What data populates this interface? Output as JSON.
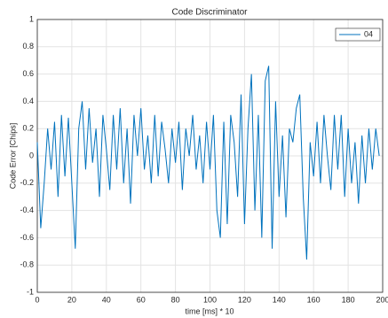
{
  "chart_data": {
    "type": "line",
    "title": "Code Discriminator",
    "x_label": "time [ms] * 10",
    "y_label": "Code Error [Chips]",
    "x": [
      0,
      2,
      4,
      6,
      8,
      10,
      12,
      14,
      16,
      18,
      20,
      22,
      24,
      26,
      28,
      30,
      32,
      34,
      36,
      38,
      40,
      42,
      44,
      46,
      48,
      50,
      52,
      54,
      56,
      58,
      60,
      62,
      64,
      66,
      68,
      70,
      72,
      74,
      76,
      78,
      80,
      82,
      84,
      86,
      88,
      90,
      92,
      94,
      96,
      98,
      100,
      102,
      104,
      106,
      108,
      110,
      112,
      114,
      116,
      118,
      120,
      122,
      124,
      126,
      128,
      130,
      132,
      134,
      136,
      138,
      140,
      142,
      144,
      146,
      148,
      150,
      152,
      154,
      156,
      158,
      160,
      162,
      164,
      166,
      168,
      170,
      172,
      174,
      176,
      178,
      180,
      182,
      184,
      186,
      188,
      190,
      192,
      194,
      196,
      198
    ],
    "series": [
      {
        "name": "04",
        "color": "#0072bd",
        "values": [
          0.1,
          -0.53,
          -0.2,
          0.2,
          -0.1,
          0.25,
          -0.3,
          0.3,
          -0.15,
          0.28,
          -0.2,
          -0.68,
          0.2,
          0.4,
          -0.1,
          0.35,
          -0.05,
          0.2,
          -0.3,
          0.3,
          0.05,
          -0.25,
          0.3,
          -0.1,
          0.35,
          -0.2,
          0.2,
          -0.35,
          0.3,
          0.0,
          0.35,
          -0.1,
          0.15,
          -0.2,
          0.3,
          -0.15,
          0.25,
          0.05,
          -0.2,
          0.2,
          -0.05,
          0.25,
          -0.25,
          0.2,
          0.0,
          0.3,
          -0.1,
          0.15,
          -0.2,
          0.25,
          -0.1,
          0.3,
          -0.4,
          -0.6,
          0.25,
          -0.5,
          0.3,
          0.1,
          -0.3,
          0.45,
          -0.5,
          0.2,
          0.6,
          -0.4,
          0.3,
          -0.6,
          0.55,
          0.66,
          -0.68,
          0.4,
          -0.3,
          0.15,
          -0.45,
          0.2,
          0.1,
          0.35,
          0.45,
          -0.3,
          -0.76,
          0.1,
          -0.15,
          0.25,
          -0.2,
          0.3,
          0.0,
          -0.25,
          0.3,
          -0.1,
          0.3,
          -0.3,
          0.2,
          -0.2,
          0.1,
          -0.35,
          0.15,
          -0.2,
          0.2,
          -0.1,
          0.2,
          0.0
        ]
      }
    ],
    "xlim": [
      0,
      200
    ],
    "xticks": [
      0,
      20,
      40,
      60,
      80,
      100,
      120,
      140,
      160,
      180,
      200
    ],
    "ylim": [
      -1,
      1
    ],
    "yticks": [
      -1,
      -0.8,
      -0.6,
      -0.4,
      -0.2,
      0,
      0.2,
      0.4,
      0.6,
      0.8,
      1
    ],
    "grid": true,
    "legend": "top-right"
  }
}
